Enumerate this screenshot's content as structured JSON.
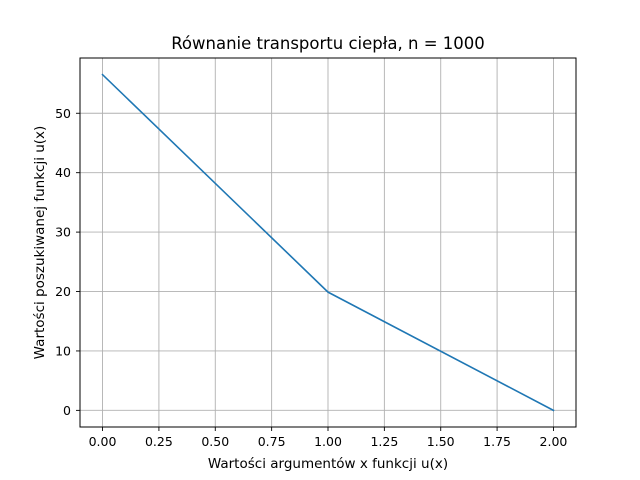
{
  "chart_data": {
    "type": "line",
    "title": "Równanie transportu ciepła, n = 1000",
    "xlabel": "Wartości argumentów x funkcji u(x)",
    "ylabel": "Wartości poszukiwanej funkcji u(x)",
    "xlim": [
      -0.1,
      2.1
    ],
    "ylim": [
      -2.8,
      59.3
    ],
    "grid": true,
    "xticks": [
      0.0,
      0.25,
      0.5,
      0.75,
      1.0,
      1.25,
      1.5,
      1.75,
      2.0
    ],
    "xtick_labels": [
      "0.00",
      "0.25",
      "0.50",
      "0.75",
      "1.00",
      "1.25",
      "1.50",
      "1.75",
      "2.00"
    ],
    "yticks": [
      0,
      10,
      20,
      30,
      40,
      50
    ],
    "ytick_labels": [
      "0",
      "10",
      "20",
      "30",
      "40",
      "50"
    ],
    "series": [
      {
        "color": "#1f77b4",
        "x": [
          0.0,
          1.0,
          2.0
        ],
        "y": [
          56.5,
          19.9,
          0.0
        ]
      }
    ]
  }
}
